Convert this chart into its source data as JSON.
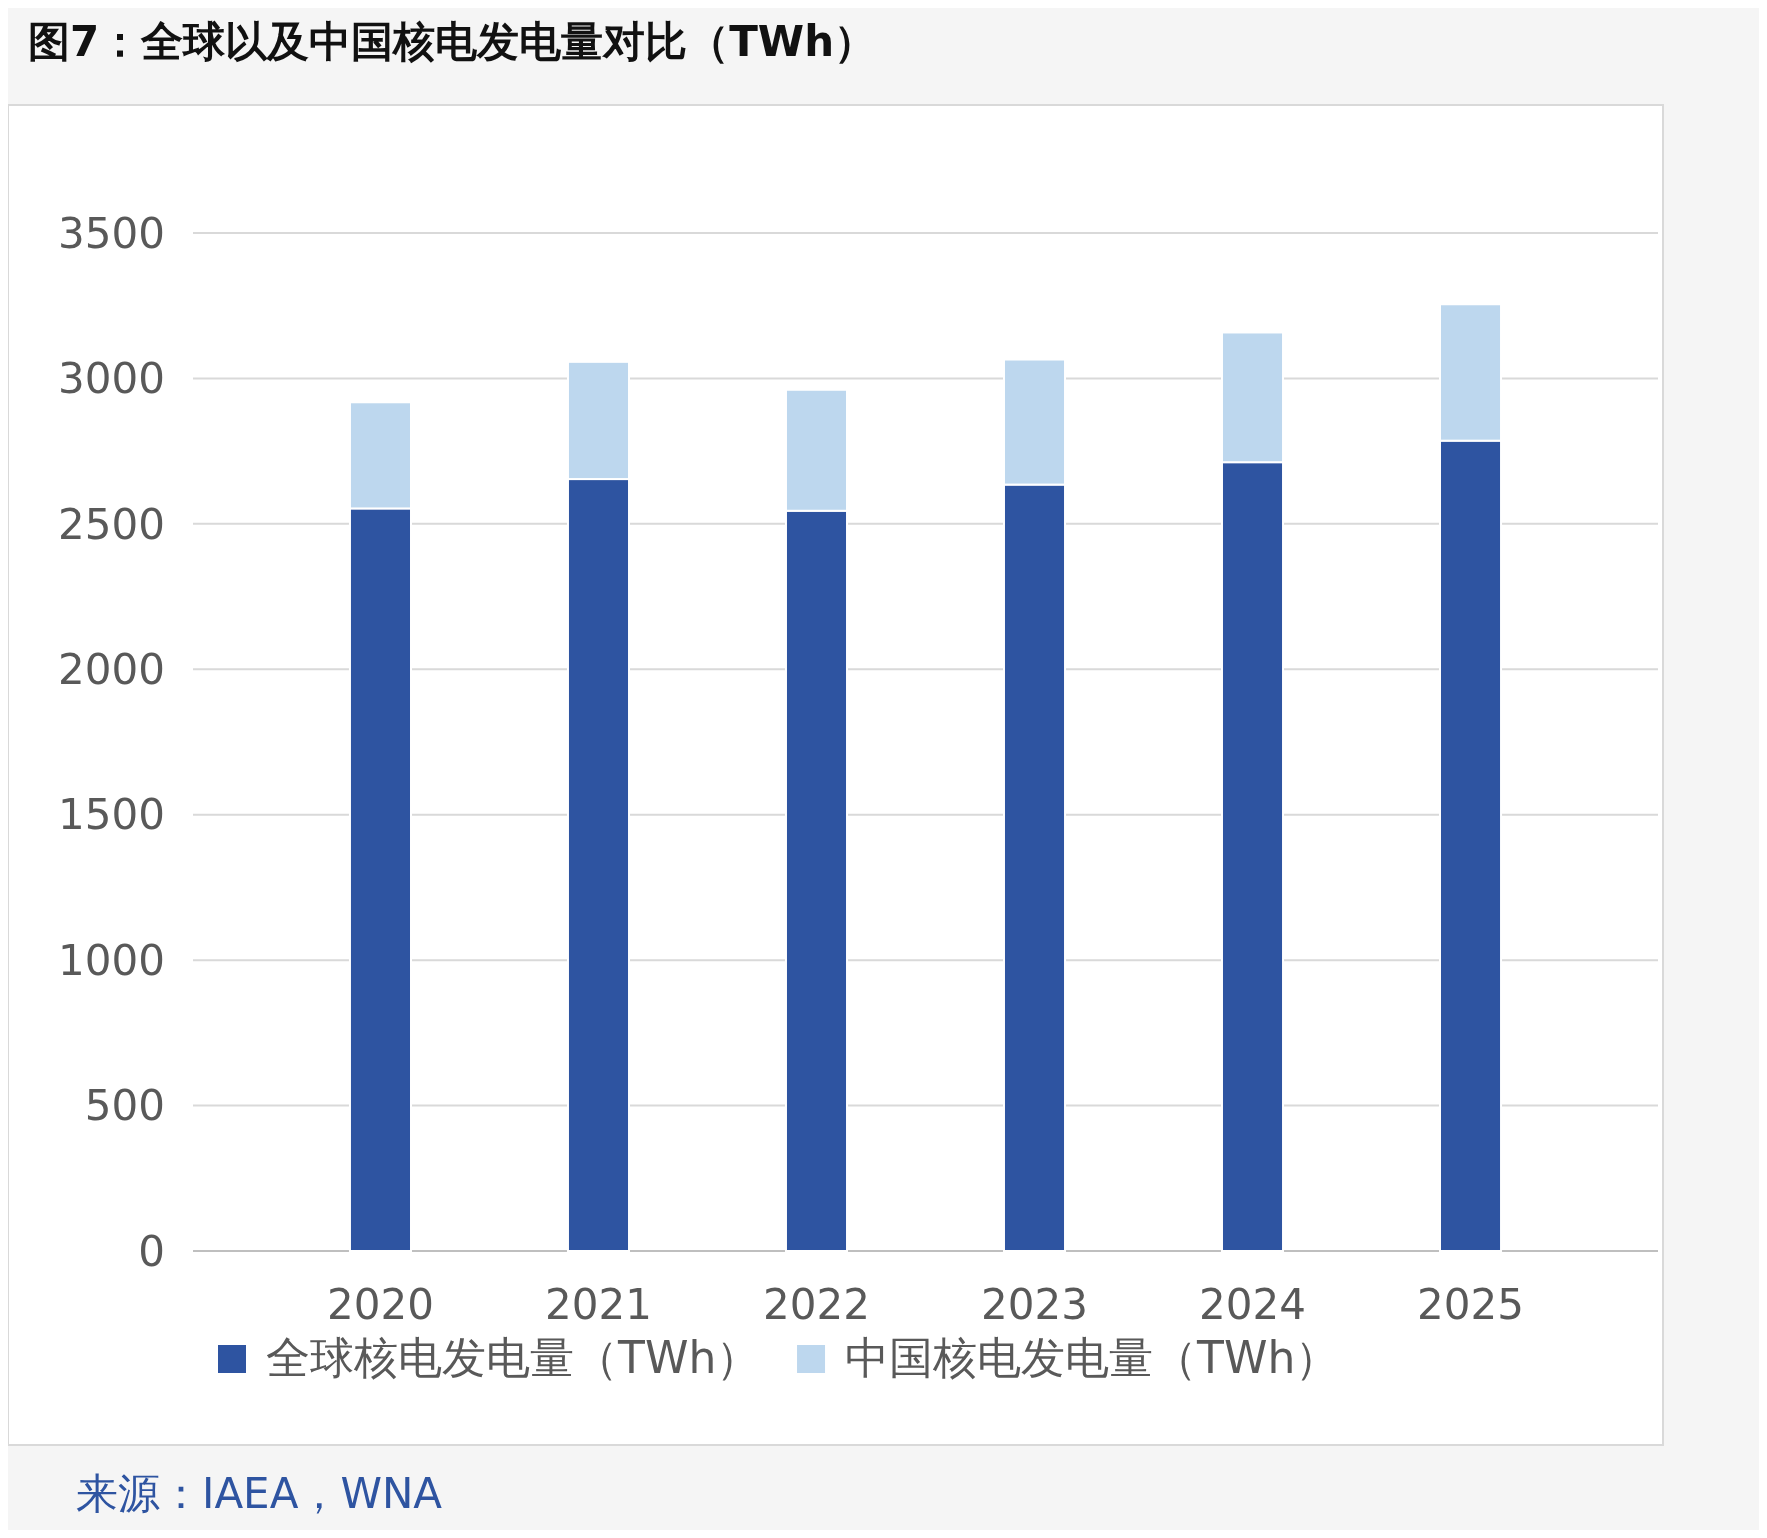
{
  "chart_data": {
    "type": "bar",
    "title": "图7：全球以及中国核电发电量对比（TWh）",
    "categories": [
      "2020",
      "2021",
      "2022",
      "2023",
      "2024",
      "2025"
    ],
    "series": [
      {
        "name": "全球核电发电量（TWh）",
        "color": "#2e54a1",
        "values": [
          2553,
          2654,
          2545,
          2635,
          2712,
          2786
        ]
      },
      {
        "name": "中国核电发电量（TWh）",
        "color": "#bdd7ee",
        "values": [
          365,
          403,
          416,
          430,
          446,
          469
        ]
      }
    ],
    "stacked": true,
    "ylim": [
      0,
      3500
    ],
    "yticks": [
      0,
      500,
      1000,
      1500,
      2000,
      2500,
      3000,
      3500
    ],
    "grid": "y",
    "legend": "bottom",
    "annotations": [
      "来源：IAEA，WNA"
    ]
  }
}
